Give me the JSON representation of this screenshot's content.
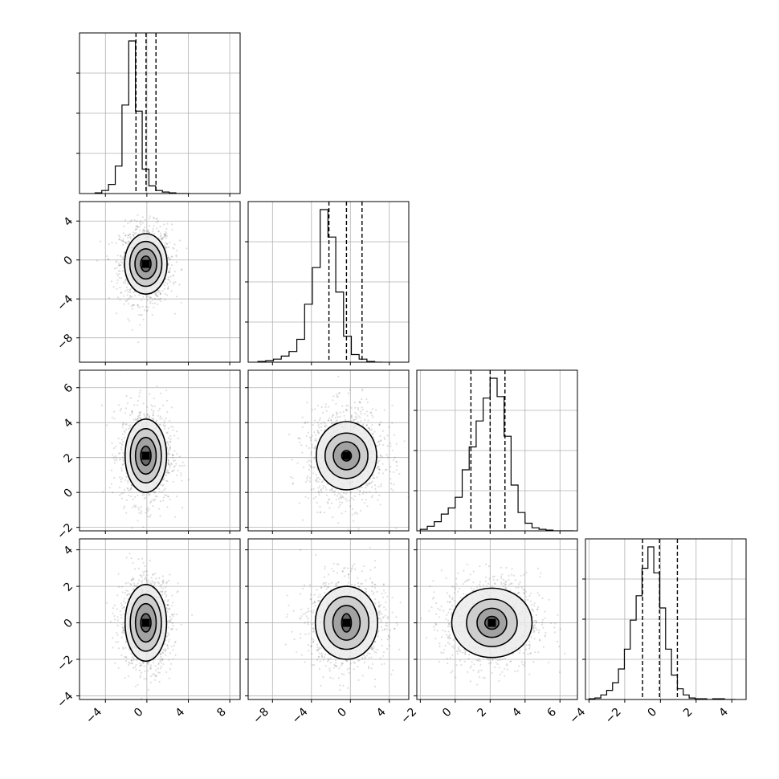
{
  "chart_data": {
    "type": "corner",
    "grid": true,
    "title": "",
    "parameters": [
      {
        "xlim": [
          -6.5,
          9
        ],
        "xticks": [
          -4,
          0,
          4,
          8
        ],
        "xticklabels": [
          "−4",
          "0",
          "4",
          "8"
        ]
      },
      {
        "xlim": [
          -10.5,
          6
        ],
        "xticks": [
          -8,
          -4,
          0,
          4
        ],
        "xticklabels": [
          "−8",
          "−4",
          "0",
          "4"
        ],
        "ylim": [
          -10.5,
          6
        ],
        "yticks": [
          -8,
          -4,
          0,
          4
        ],
        "yticklabels": [
          "−8",
          "−4",
          "0",
          "4"
        ]
      },
      {
        "xlim": [
          -2.2,
          7
        ],
        "xticks": [
          -2,
          0,
          2,
          4,
          6
        ],
        "xticklabels": [
          "−2",
          "0",
          "2",
          "4",
          "6"
        ],
        "ylim": [
          -2.2,
          7
        ],
        "yticks": [
          -2,
          0,
          2,
          4,
          6
        ],
        "yticklabels": [
          "−2",
          "0",
          "2",
          "4",
          "6"
        ]
      },
      {
        "xlim": [
          -4.2,
          4.8
        ],
        "xticks": [
          -4,
          -2,
          0,
          2,
          4
        ],
        "xticklabels": [
          "−4",
          "−2",
          "0",
          "2",
          "4"
        ],
        "ylim": [
          -4.2,
          4.6
        ],
        "yticks": [
          -4,
          -2,
          0,
          2,
          4
        ],
        "yticklabels": [
          "−4",
          "−2",
          "0",
          "2",
          "4"
        ]
      }
    ],
    "histograms": [
      {
        "edges_start": -5.0,
        "bin_width": 0.65,
        "counts": [
          0.005,
          0.02,
          0.06,
          0.18,
          0.58,
          1.0,
          0.54,
          0.16,
          0.05,
          0.02,
          0.01,
          0.005,
          0.0,
          0.0
        ],
        "quantiles": [
          -1.05,
          -0.08,
          0.88
        ]
      },
      {
        "edges_start": -9.5,
        "bin_width": 0.8,
        "counts": [
          0.005,
          0.01,
          0.02,
          0.04,
          0.07,
          0.15,
          0.38,
          0.62,
          1.0,
          0.82,
          0.46,
          0.17,
          0.05,
          0.02,
          0.005,
          0.0
        ],
        "quantiles": [
          -2.2,
          -0.4,
          1.2
        ]
      },
      {
        "edges_start": -2.0,
        "bin_width": 0.4,
        "counts": [
          0.01,
          0.03,
          0.06,
          0.11,
          0.15,
          0.22,
          0.4,
          0.55,
          0.72,
          0.87,
          1.0,
          0.88,
          0.62,
          0.3,
          0.12,
          0.05,
          0.02,
          0.01,
          0.005,
          0.0,
          0.0,
          0.0
        ],
        "quantiles": [
          0.9,
          2.0,
          2.85
        ]
      },
      {
        "edges_start": -4.0,
        "bin_width": 0.33,
        "counts": [
          0.005,
          0.01,
          0.03,
          0.06,
          0.11,
          0.2,
          0.33,
          0.52,
          0.68,
          0.86,
          1.0,
          0.83,
          0.6,
          0.33,
          0.16,
          0.07,
          0.03,
          0.01,
          0.005,
          0.005,
          0.0,
          0.005,
          0.005,
          0.0,
          0.0
        ],
        "quantiles": [
          -1.0,
          -0.05,
          0.95
        ]
      }
    ],
    "pairs": [
      {
        "row": 1,
        "col": 0,
        "mean": [
          -0.1,
          -0.4
        ],
        "sd": [
          1.0,
          1.6
        ],
        "contours": [
          [
            0.5,
            0.8
          ],
          [
            1.05,
            1.55
          ],
          [
            1.55,
            2.3
          ],
          [
            2.05,
            3.1
          ]
        ]
      },
      {
        "row": 2,
        "col": 0,
        "mean": [
          -0.1,
          2.1
        ],
        "sd": [
          1.0,
          1.1
        ],
        "contours": [
          [
            0.5,
            0.55
          ],
          [
            1.0,
            1.05
          ],
          [
            1.5,
            1.55
          ],
          [
            2.0,
            2.1
          ]
        ]
      },
      {
        "row": 2,
        "col": 1,
        "mean": [
          -0.4,
          2.1
        ],
        "sd": [
          1.6,
          1.1
        ],
        "contours": [
          [
            0.5,
            0.3
          ],
          [
            1.35,
            0.8
          ],
          [
            2.2,
            1.3
          ],
          [
            3.1,
            1.95
          ]
        ]
      },
      {
        "row": 3,
        "col": 0,
        "mean": [
          -0.1,
          0.0
        ],
        "sd": [
          1.0,
          1.0
        ],
        "contours": [
          [
            0.5,
            0.5
          ],
          [
            1.0,
            1.05
          ],
          [
            1.5,
            1.55
          ],
          [
            2.0,
            2.1
          ]
        ]
      },
      {
        "row": 3,
        "col": 1,
        "mean": [
          -0.4,
          0.0
        ],
        "sd": [
          1.6,
          1.0
        ],
        "contours": [
          [
            0.5,
            0.5
          ],
          [
            1.4,
            0.95
          ],
          [
            2.3,
            1.45
          ],
          [
            3.2,
            2.0
          ]
        ]
      },
      {
        "row": 3,
        "col": 2,
        "mean": [
          2.1,
          0.0
        ],
        "sd": [
          1.1,
          1.0
        ],
        "contours": [
          [
            0.4,
            0.35
          ],
          [
            0.85,
            0.8
          ],
          [
            1.45,
            1.3
          ],
          [
            2.3,
            1.9
          ]
        ]
      }
    ],
    "points_per_panel": 1200
  }
}
